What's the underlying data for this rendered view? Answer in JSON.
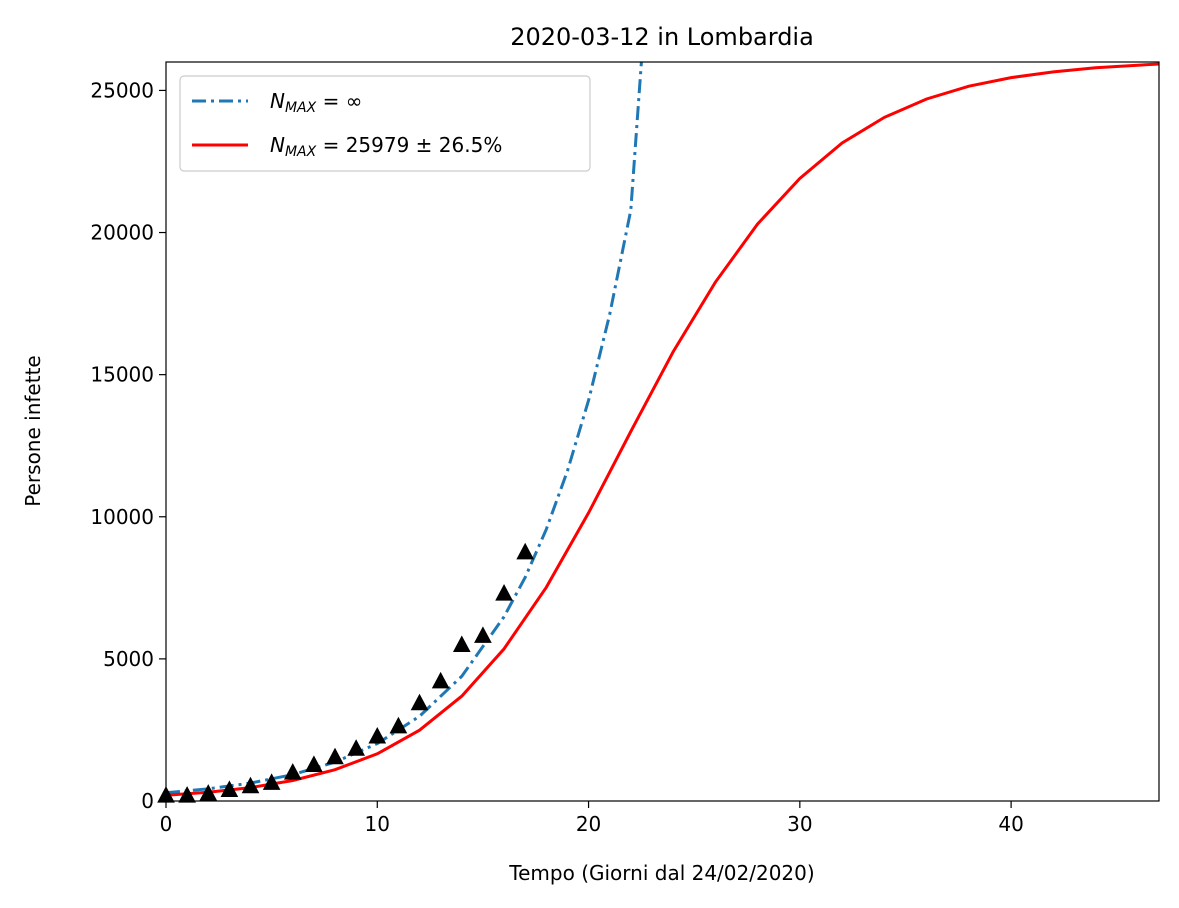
{
  "chart_data": {
    "type": "line",
    "title": "2020-03-12 in Lombardia",
    "xlabel": "Tempo (Giorni dal 24/02/2020)",
    "ylabel": "Persone infette",
    "xlim": [
      0,
      47
    ],
    "ylim": [
      0,
      26000
    ],
    "xticks": [
      0,
      10,
      20,
      30,
      40
    ],
    "yticks": [
      0,
      5000,
      10000,
      15000,
      20000,
      25000
    ],
    "grid": false,
    "legend_position": "top-left",
    "series": [
      {
        "name_main": "N",
        "name_sub": "MAX",
        "name_rest": " = ∞",
        "kind": "exponential-fit",
        "style": "dashdot",
        "color": "#1f77b4",
        "x": [
          0,
          2,
          4,
          6,
          8,
          10,
          12,
          14,
          16,
          17,
          18,
          19,
          20,
          21,
          22,
          22.5
        ],
        "y": [
          290,
          430,
          630,
          930,
          1370,
          2020,
          2980,
          4390,
          6480,
          7870,
          9560,
          11610,
          14100,
          17120,
          20790,
          26000
        ]
      },
      {
        "name_main": "N",
        "name_sub": "MAX",
        "name_rest": " = 25979 ± 26.5%",
        "kind": "logistic-fit",
        "style": "solid",
        "color": "#ff0000",
        "x": [
          0,
          2,
          4,
          6,
          8,
          10,
          12,
          14,
          16,
          18,
          20,
          22,
          24,
          26,
          28,
          30,
          32,
          34,
          36,
          38,
          40,
          42,
          44,
          47
        ],
        "y": [
          200,
          310,
          470,
          720,
          1100,
          1660,
          2490,
          3690,
          5350,
          7520,
          10140,
          13000,
          15800,
          18250,
          20300,
          21900,
          23150,
          24050,
          24700,
          25150,
          25450,
          25650,
          25800,
          25930
        ]
      }
    ],
    "observed": {
      "marker": "triangle",
      "color": "#000000",
      "x": [
        0,
        1,
        2,
        3,
        4,
        5,
        6,
        7,
        8,
        9,
        10,
        11,
        12,
        13,
        14,
        15,
        16,
        17
      ],
      "y": [
        170,
        170,
        240,
        370,
        500,
        620,
        980,
        1250,
        1520,
        1820,
        2250,
        2610,
        3420,
        4190,
        5470,
        5790,
        7280,
        8730
      ]
    }
  }
}
